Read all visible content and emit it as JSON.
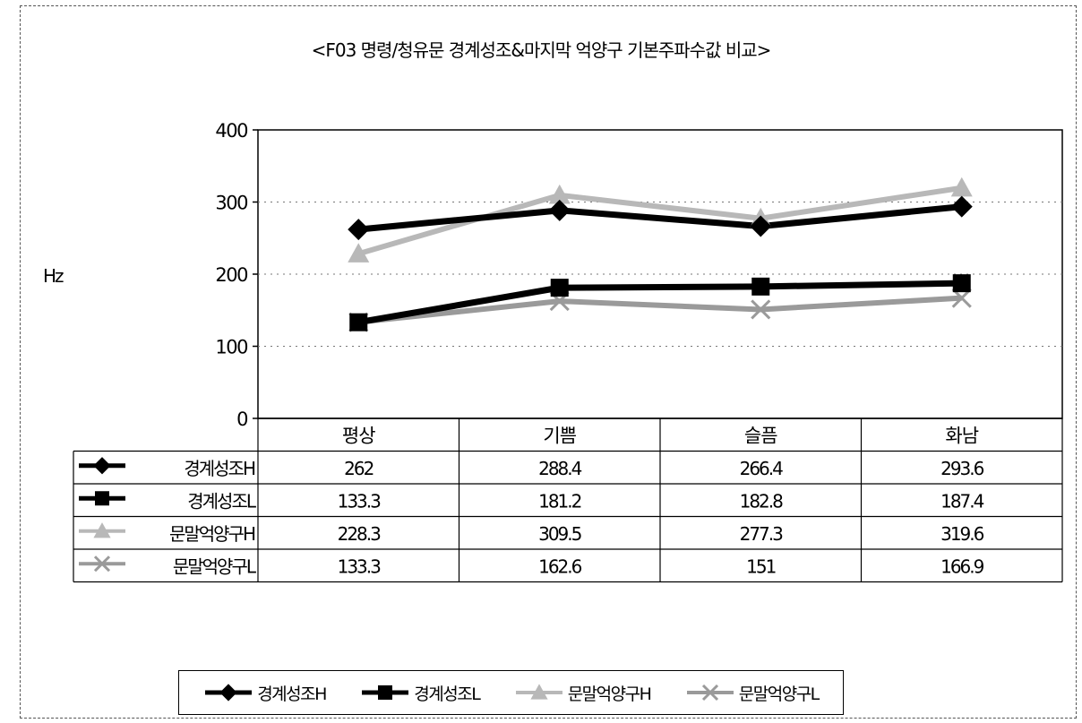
{
  "chart_data": {
    "type": "line",
    "title": "<F03 명령/청유문 경계성조&마지막 억양구 기본주파수값 비교>",
    "ylabel": "Hz",
    "xlabel": "",
    "categories": [
      "평상",
      "기쁨",
      "슬픔",
      "화남"
    ],
    "ylim": [
      0,
      400
    ],
    "yticks": [
      0,
      100,
      200,
      300,
      400
    ],
    "grid": true,
    "legend_position": "bottom",
    "data_table": true,
    "series": [
      {
        "name": "경계성조H",
        "values": [
          262,
          288.4,
          266.4,
          293.6
        ],
        "value_labels": [
          "262",
          "288.4",
          "266.4",
          "293.6"
        ],
        "color": "#000000",
        "marker": "diamond"
      },
      {
        "name": "경계성조L",
        "values": [
          133.3,
          181.2,
          182.8,
          187.4
        ],
        "value_labels": [
          "133.3",
          "181.2",
          "182.8",
          "187.4"
        ],
        "color": "#000000",
        "marker": "square"
      },
      {
        "name": "문말억양구H",
        "values": [
          228.3,
          309.5,
          277.3,
          319.6
        ],
        "value_labels": [
          "228.3",
          "309.5",
          "277.3",
          "319.6"
        ],
        "color": "#b8b8b8",
        "marker": "triangle"
      },
      {
        "name": "문말억양구L",
        "values": [
          133.3,
          162.6,
          151,
          166.9
        ],
        "value_labels": [
          "133.3",
          "162.6",
          "151",
          "166.9"
        ],
        "color": "#9a9a9a",
        "marker": "x"
      }
    ]
  }
}
